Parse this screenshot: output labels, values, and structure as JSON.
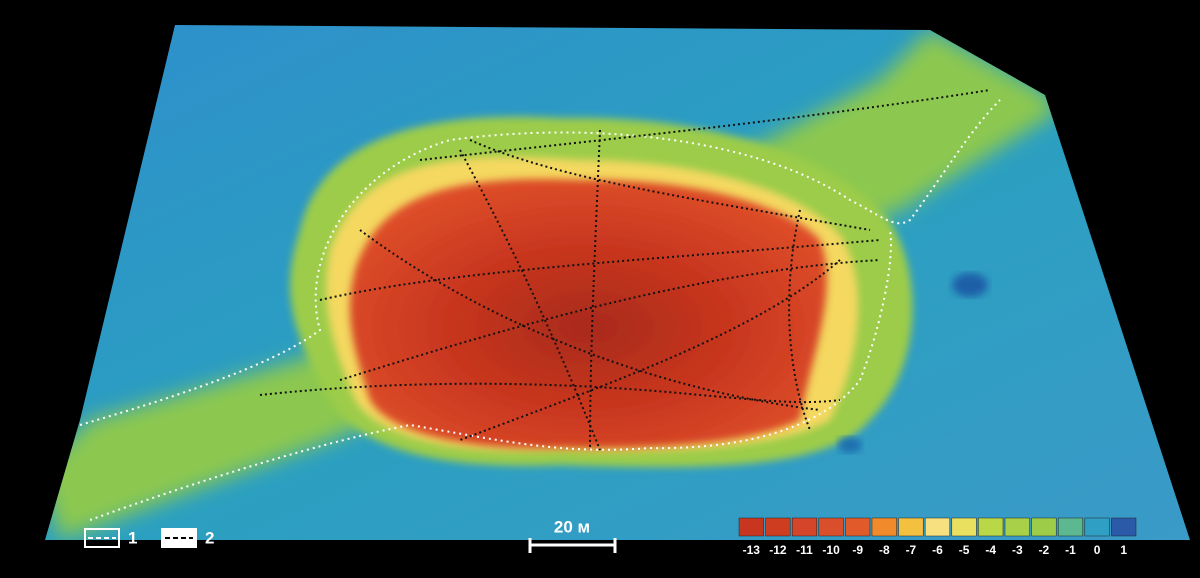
{
  "legend": [
    {
      "label": "1"
    },
    {
      "label": "2"
    }
  ],
  "scale_bar": {
    "label": "20 м"
  },
  "color_scale": {
    "values": [
      -13,
      -12,
      -11,
      -10,
      -9,
      -8,
      -7,
      -6,
      -5,
      -4,
      -3,
      -2,
      -1,
      0,
      1
    ],
    "colors": [
      "#c8361f",
      "#cf3d21",
      "#d4452a",
      "#d94f2c",
      "#e05a2a",
      "#f08a2a",
      "#f4c040",
      "#f6e080",
      "#eae060",
      "#b8d848",
      "#a8d048",
      "#9ccc48",
      "#5cb890",
      "#2f9fc4",
      "#2a5aa8"
    ]
  }
}
